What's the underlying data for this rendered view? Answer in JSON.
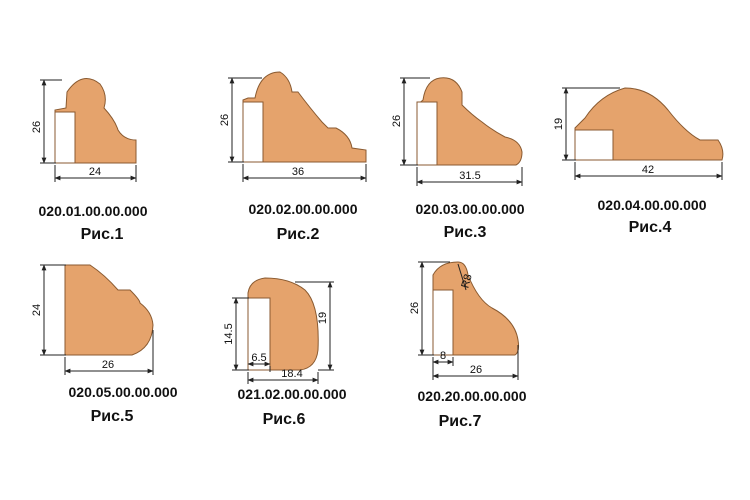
{
  "profiles": [
    {
      "code": "020.01.00.00.000",
      "figure": "Рис.1",
      "height": "26",
      "width": "24"
    },
    {
      "code": "020.02.00.00.000",
      "figure": "Рис.2",
      "height": "26",
      "width": "36"
    },
    {
      "code": "020.03.00.00.000",
      "figure": "Рис.3",
      "height": "26",
      "width": "31.5"
    },
    {
      "code": "020.04.00.00.000",
      "figure": "Рис.4",
      "height": "19",
      "width": "42"
    },
    {
      "code": "020.05.00.00.000",
      "figure": "Рис.5",
      "height": "24",
      "width": "26"
    },
    {
      "code": "021.02.00.00.000",
      "figure": "Рис.6",
      "height": "19",
      "width": "18.4",
      "inner_height": "14.5",
      "inner_width": "6.5"
    },
    {
      "code": "020.20.00.00.000",
      "figure": "Рис.7",
      "height": "26",
      "width": "26",
      "inner_width": "8",
      "radius": "R8"
    }
  ],
  "colors": {
    "profile_fill": "#e5a36c",
    "profile_stroke": "#8a5a30",
    "dimension": "#222222"
  }
}
